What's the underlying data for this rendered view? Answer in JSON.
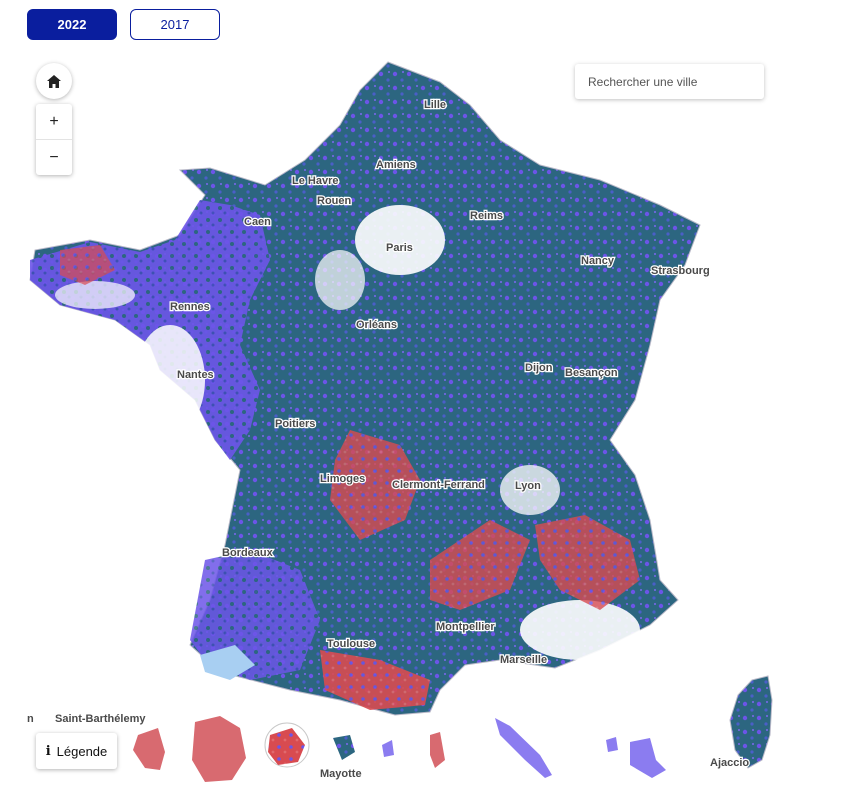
{
  "years": {
    "active": "2022",
    "inactive": "2017"
  },
  "search": {
    "placeholder": "Rechercher une ville"
  },
  "controls": {
    "zoom_in": "+",
    "zoom_out": "−",
    "home_icon": "home-icon",
    "info_icon": "info-icon"
  },
  "legend": {
    "label": "Légende"
  },
  "colors": {
    "primary": "#0a1e9e",
    "dark_teal": "#2c6680",
    "blue_purple": "#6c55e8",
    "light_purple": "#9b8cf2",
    "red": "#d84b50",
    "light_blue": "#a8cff2"
  },
  "cities": {
    "lille": "Lille",
    "amiens": "Amiens",
    "le_havre": "Le Havre",
    "rouen": "Rouen",
    "caen": "Caen",
    "reims": "Reims",
    "paris": "Paris",
    "nancy": "Nancy",
    "strasbourg": "Strasbourg",
    "rennes": "Rennes",
    "orleans": "Orléans",
    "dijon": "Dijon",
    "besancon": "Besançon",
    "nantes": "Nantes",
    "poitiers": "Poitiers",
    "limoges": "Limoges",
    "clermont": "Clermont-Ferrand",
    "lyon": "Lyon",
    "bordeaux": "Bordeaux",
    "montpellier": "Montpellier",
    "toulouse": "Toulouse",
    "marseille": "Marseille",
    "ajaccio": "Ajaccio"
  },
  "overseas": {
    "saint_barthelemy": "Saint-Barthélemy",
    "mayotte": "Mayotte",
    "cut_label": "n"
  }
}
